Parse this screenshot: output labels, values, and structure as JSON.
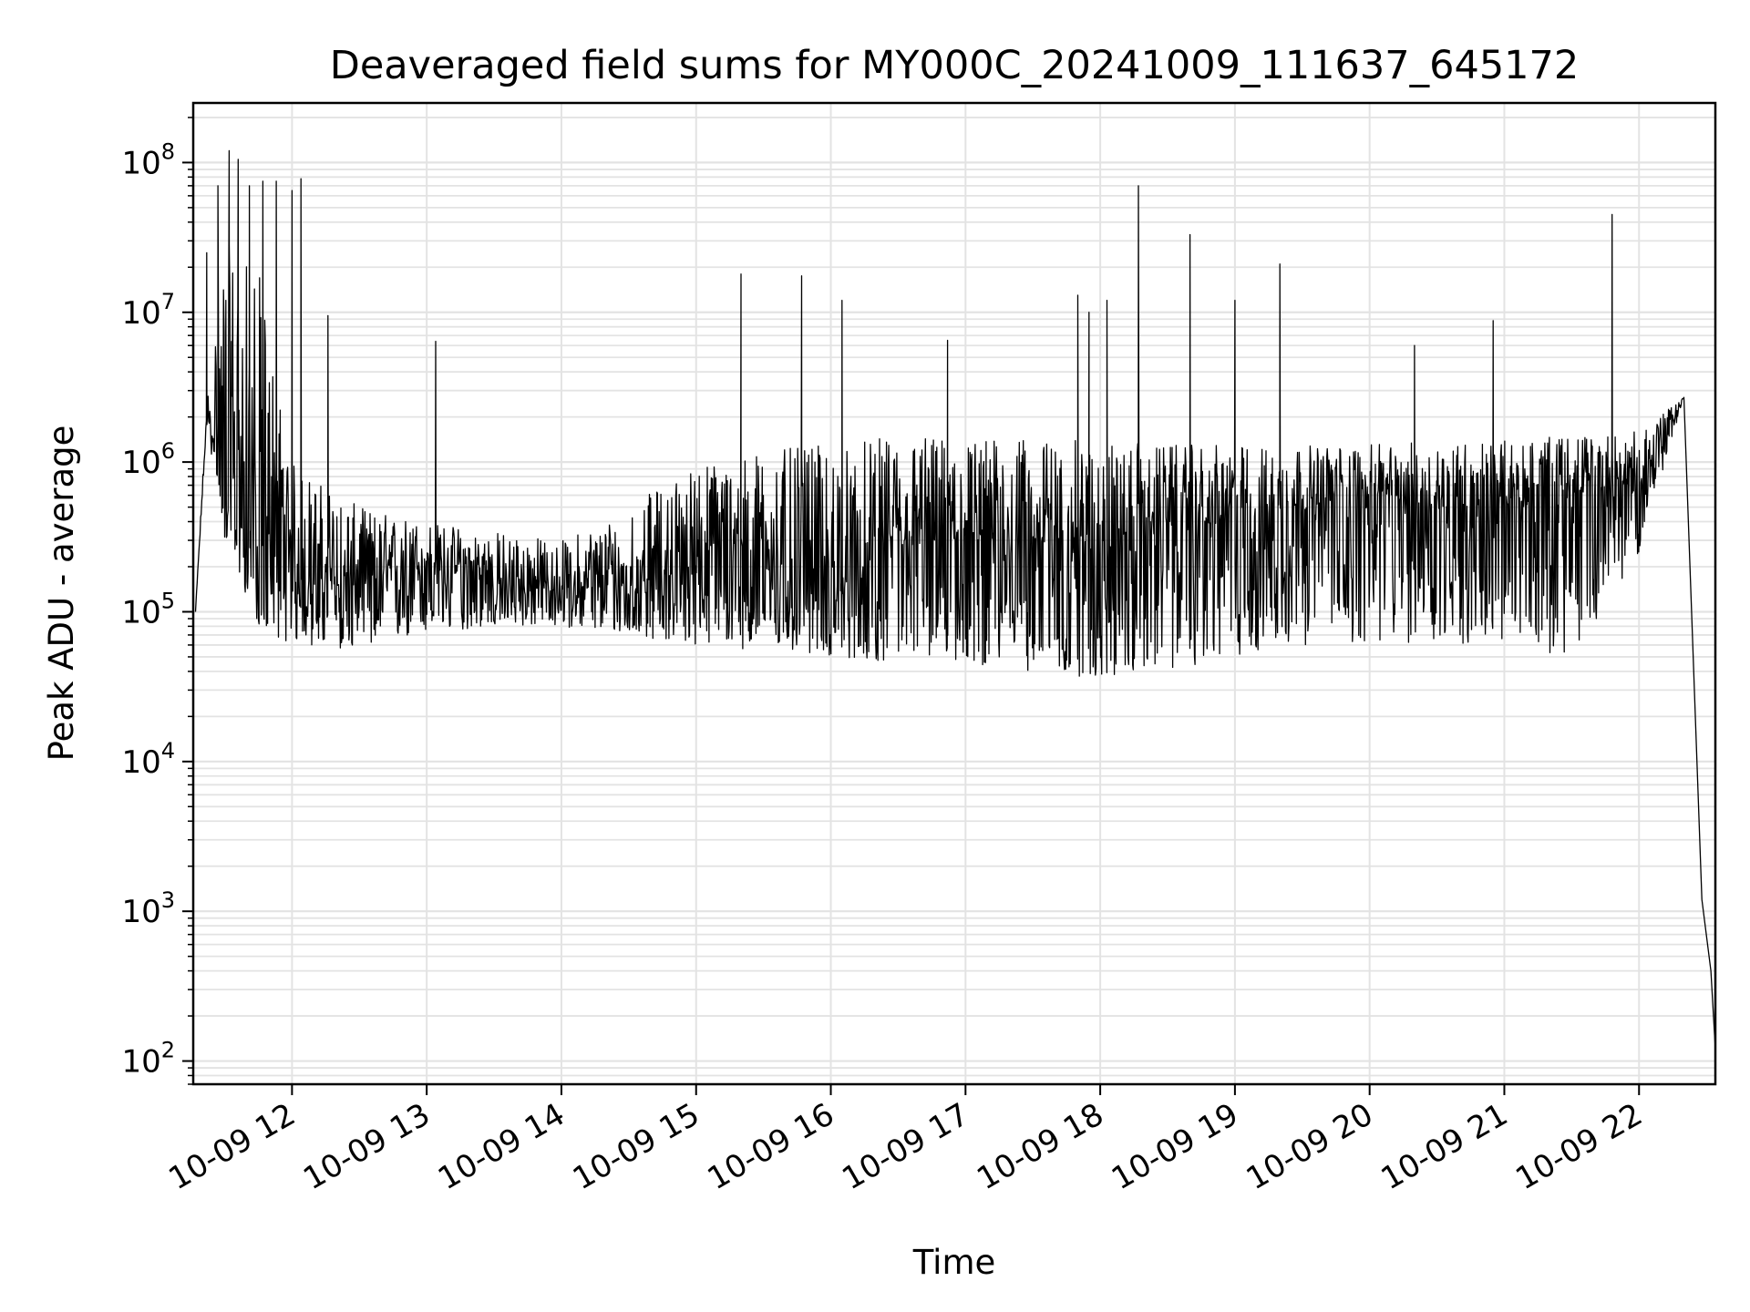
{
  "chart_data": {
    "type": "line",
    "title": "Deaveraged field sums for MY000C_20241009_111637_645172",
    "xlabel": "Time",
    "ylabel": "Peak ADU - average",
    "y_scale": "log",
    "ylim": [
      70,
      250000000
    ],
    "xlim": [
      "2024-10-09 11:16",
      "2024-10-09 22:34"
    ],
    "grid": true,
    "line_color": "#000000",
    "grid_color": "#e3e3e3",
    "x_ticks": [
      "10-09 12",
      "10-09 13",
      "10-09 14",
      "10-09 15",
      "10-09 16",
      "10-09 17",
      "10-09 18",
      "10-09 19",
      "10-09 20",
      "10-09 21",
      "10-09 22"
    ],
    "y_ticks": [
      {
        "base": "10",
        "exp": "2",
        "value": 100
      },
      {
        "base": "10",
        "exp": "3",
        "value": 1000
      },
      {
        "base": "10",
        "exp": "4",
        "value": 10000
      },
      {
        "base": "10",
        "exp": "5",
        "value": 100000
      },
      {
        "base": "10",
        "exp": "6",
        "value": 1000000
      },
      {
        "base": "10",
        "exp": "7",
        "value": 10000000
      },
      {
        "base": "10",
        "exp": "8",
        "value": 100000000
      }
    ],
    "series": [
      {
        "style": "noisy band with spikes (approximate envelope)",
        "x": [
          "2024-10-09 11:17",
          "2024-10-09 11:22",
          "2024-10-09 11:30",
          "2024-10-09 11:45",
          "2024-10-09 12:00",
          "2024-10-09 12:30",
          "2024-10-09 13:00",
          "2024-10-09 13:30",
          "2024-10-09 14:00",
          "2024-10-09 14:30",
          "2024-10-09 15:00",
          "2024-10-09 15:30",
          "2024-10-09 16:00",
          "2024-10-09 16:30",
          "2024-10-09 17:00",
          "2024-10-09 17:30",
          "2024-10-09 18:00",
          "2024-10-09 18:30",
          "2024-10-09 19:00",
          "2024-10-09 19:30",
          "2024-10-09 20:00",
          "2024-10-09 20:30",
          "2024-10-09 21:00",
          "2024-10-09 21:30",
          "2024-10-09 22:00",
          "2024-10-09 22:20",
          "2024-10-09 22:28",
          "2024-10-09 22:32",
          "2024-10-09 22:34"
        ],
        "y": [
          100000,
          2000000,
          800000,
          250000,
          150000,
          150000,
          200000,
          150000,
          140000,
          150000,
          200000,
          250000,
          120000,
          250000,
          300000,
          300000,
          250000,
          350000,
          400000,
          500000,
          600000,
          500000,
          500000,
          600000,
          700000,
          2700000,
          1200,
          400,
          120
        ],
        "upper": [
          100000,
          2500000,
          30000000,
          20000000,
          1000000,
          500000,
          400000,
          350000,
          300000,
          500000,
          1000000,
          1200000,
          1300000,
          1500000,
          1500000,
          1400000,
          1400000,
          1300000,
          1300000,
          1300000,
          1300000,
          1400000,
          1400000,
          1500000,
          1600000,
          2700000,
          1200,
          400,
          120
        ],
        "lower": [
          100000,
          1800000,
          300000,
          80000,
          60000,
          55000,
          70000,
          80000,
          80000,
          70000,
          60000,
          55000,
          50000,
          45000,
          45000,
          40000,
          35000,
          40000,
          50000,
          60000,
          60000,
          60000,
          60000,
          50000,
          250000,
          2700000,
          1200,
          400,
          120
        ],
        "peaks": [
          {
            "x": "2024-10-09 11:22",
            "y": 25000000
          },
          {
            "x": "2024-10-09 11:27",
            "y": 70000000
          },
          {
            "x": "2024-10-09 11:32",
            "y": 120000000
          },
          {
            "x": "2024-10-09 11:36",
            "y": 105000000
          },
          {
            "x": "2024-10-09 11:41",
            "y": 70000000
          },
          {
            "x": "2024-10-09 11:47",
            "y": 75000000
          },
          {
            "x": "2024-10-09 11:53",
            "y": 75000000
          },
          {
            "x": "2024-10-09 12:00",
            "y": 65000000
          },
          {
            "x": "2024-10-09 12:04",
            "y": 78000000
          },
          {
            "x": "2024-10-09 12:16",
            "y": 9500000
          },
          {
            "x": "2024-10-09 13:04",
            "y": 6400000
          },
          {
            "x": "2024-10-09 15:20",
            "y": 18000000
          },
          {
            "x": "2024-10-09 15:47",
            "y": 17500000
          },
          {
            "x": "2024-10-09 16:05",
            "y": 12000000
          },
          {
            "x": "2024-10-09 16:52",
            "y": 6500000
          },
          {
            "x": "2024-10-09 17:50",
            "y": 13000000
          },
          {
            "x": "2024-10-09 17:55",
            "y": 10000000
          },
          {
            "x": "2024-10-09 18:03",
            "y": 12000000
          },
          {
            "x": "2024-10-09 18:17",
            "y": 70000000
          },
          {
            "x": "2024-10-09 18:40",
            "y": 33000000
          },
          {
            "x": "2024-10-09 19:00",
            "y": 12000000
          },
          {
            "x": "2024-10-09 19:20",
            "y": 21000000
          },
          {
            "x": "2024-10-09 20:20",
            "y": 6000000
          },
          {
            "x": "2024-10-09 20:55",
            "y": 8800000
          },
          {
            "x": "2024-10-09 21:48",
            "y": 45000000
          }
        ]
      }
    ]
  }
}
